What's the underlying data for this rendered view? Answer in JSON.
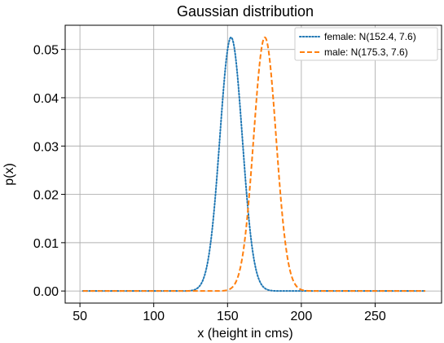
{
  "chart_data": {
    "type": "line",
    "title": "Gaussian distribution",
    "xlabel": "x (height in cms)",
    "ylabel": "p(x)",
    "xlim": [
      40,
      295
    ],
    "ylim": [
      -0.0025,
      0.055
    ],
    "xticks": [
      50,
      100,
      150,
      200,
      250
    ],
    "yticks": [
      0.0,
      0.01,
      0.02,
      0.03,
      0.04,
      0.05
    ],
    "ytick_labels": [
      "0.00",
      "0.01",
      "0.02",
      "0.03",
      "0.04",
      "0.05"
    ],
    "grid": true,
    "legend_position": "top-right",
    "x_range": [
      52,
      284
    ],
    "series": [
      {
        "name": "female: N(152.4, 7.6)",
        "mean": 152.4,
        "std": 7.6,
        "color": "#1f77b4",
        "style": "dotted"
      },
      {
        "name": "male: N(175.3, 7.6)",
        "mean": 175.3,
        "std": 7.6,
        "color": "#ff7f0e",
        "style": "dashed"
      }
    ]
  }
}
